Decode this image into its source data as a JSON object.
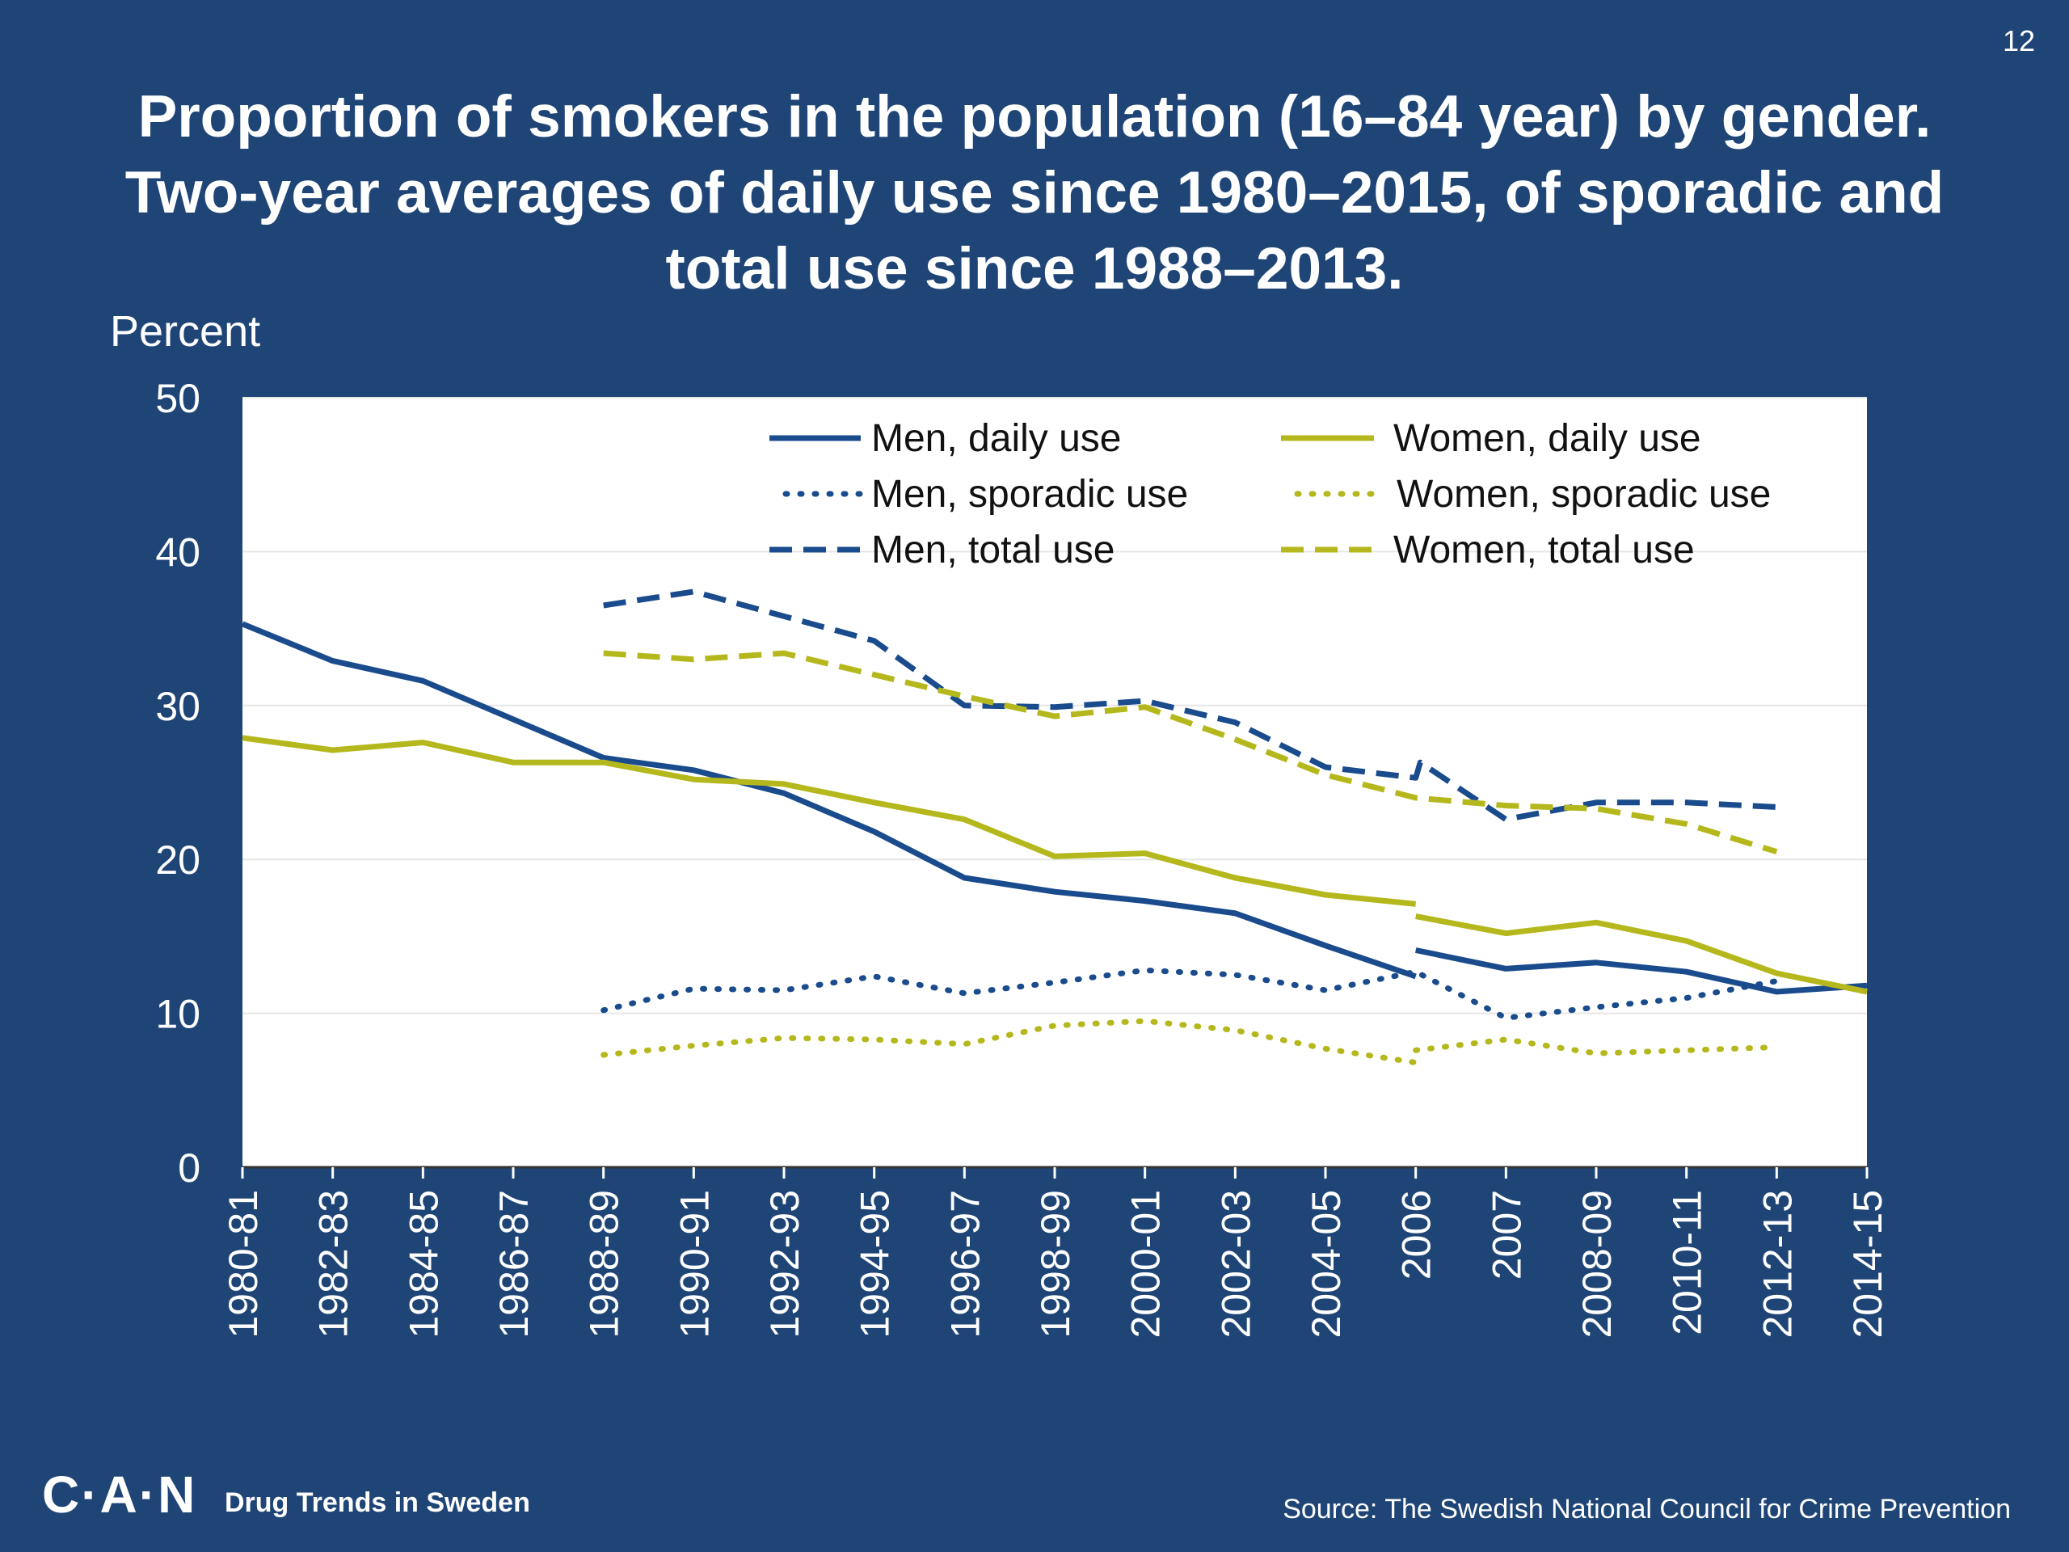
{
  "page_number": "12",
  "title_lines": [
    "Proportion of smokers in the population (16–84 year) by gender.",
    "Two-year averages of daily use since 1980–2015, of sporadic and",
    "total use since 1988–2013."
  ],
  "footer": {
    "logo": "C·A·N",
    "tagline": "Drug Trends in Sweden",
    "source": "Source: The Swedish National Council for Crime Prevention"
  },
  "colors": {
    "background": "#1f4577",
    "men": "#1a4b8c",
    "women": "#b5b81c",
    "plot_background": "#ffffff",
    "gridline": "#e6e6e6",
    "text": "#ffffff"
  },
  "chart_data": {
    "type": "line",
    "ylabel": "Percent",
    "xlabel": "",
    "ylim": [
      0,
      50
    ],
    "yticks": [
      0,
      10,
      20,
      30,
      40,
      50
    ],
    "grid": true,
    "legend_position": "top-right",
    "categories": [
      "1980-81",
      "1982-83",
      "1984-85",
      "1986-87",
      "1988-89",
      "1990-91",
      "1992-93",
      "1994-95",
      "1996-97",
      "1998-99",
      "2000-01",
      "2002-03",
      "2004-05",
      "2006",
      "2007",
      "2008-09",
      "2010-11",
      "2012-13",
      "2014-15"
    ],
    "series": [
      {
        "name": "Men, daily use",
        "color": "#1a4b8c",
        "style": "solid",
        "segments": [
          [
            [
              0,
              35.3
            ],
            [
              1,
              32.9
            ],
            [
              2,
              31.6
            ],
            [
              3,
              29.1
            ],
            [
              4,
              26.6
            ],
            [
              5,
              25.8
            ],
            [
              6,
              24.3
            ],
            [
              7,
              21.8
            ],
            [
              8,
              18.8
            ],
            [
              9,
              17.9
            ],
            [
              10,
              17.3
            ],
            [
              11,
              16.5
            ],
            [
              12,
              14.4
            ],
            [
              13,
              12.4
            ]
          ],
          [
            [
              13,
              14.1
            ],
            [
              14,
              12.9
            ],
            [
              15,
              13.3
            ],
            [
              16,
              12.7
            ],
            [
              17,
              11.4
            ],
            [
              18,
              11.8
            ]
          ]
        ]
      },
      {
        "name": "Men, sporadic use",
        "color": "#1a4b8c",
        "style": "dotted",
        "segments": [
          [
            [
              4,
              10.2
            ],
            [
              5,
              11.6
            ],
            [
              6,
              11.5
            ],
            [
              7,
              12.4
            ],
            [
              8,
              11.3
            ],
            [
              9,
              12.0
            ],
            [
              10,
              12.8
            ],
            [
              11,
              12.5
            ],
            [
              12,
              11.5
            ],
            [
              13,
              12.7
            ],
            [
              14,
              9.7
            ],
            [
              15,
              10.4
            ],
            [
              16,
              11.0
            ],
            [
              17,
              12.1
            ]
          ]
        ]
      },
      {
        "name": "Men, total use",
        "color": "#1a4b8c",
        "style": "dashed",
        "segments": [
          [
            [
              4,
              36.5
            ],
            [
              5,
              37.4
            ],
            [
              6,
              35.8
            ],
            [
              7,
              34.2
            ],
            [
              8,
              30.0
            ],
            [
              9,
              29.9
            ],
            [
              10,
              30.3
            ],
            [
              11,
              28.9
            ],
            [
              12,
              26.0
            ],
            [
              13,
              25.3
            ],
            [
              13.05,
              26.3
            ],
            [
              14,
              22.6
            ],
            [
              15,
              23.7
            ],
            [
              16,
              23.7
            ],
            [
              17,
              23.4
            ]
          ]
        ]
      },
      {
        "name": "Women, daily use",
        "color": "#b5b81c",
        "style": "solid",
        "segments": [
          [
            [
              0,
              27.9
            ],
            [
              1,
              27.1
            ],
            [
              2,
              27.6
            ],
            [
              3,
              26.3
            ],
            [
              4,
              26.3
            ],
            [
              5,
              25.2
            ],
            [
              6,
              24.9
            ],
            [
              7,
              23.7
            ],
            [
              8,
              22.6
            ],
            [
              9,
              20.2
            ],
            [
              10,
              20.4
            ],
            [
              11,
              18.8
            ],
            [
              12,
              17.7
            ],
            [
              13,
              17.1
            ]
          ],
          [
            [
              13,
              16.3
            ],
            [
              14,
              15.2
            ],
            [
              15,
              15.9
            ],
            [
              16,
              14.7
            ],
            [
              17,
              12.6
            ],
            [
              18,
              11.4
            ]
          ]
        ]
      },
      {
        "name": "Women, sporadic use",
        "color": "#b5b81c",
        "style": "dotted",
        "segments": [
          [
            [
              4,
              7.3
            ],
            [
              5,
              7.9
            ],
            [
              6,
              8.4
            ],
            [
              7,
              8.3
            ],
            [
              8,
              8.0
            ],
            [
              9,
              9.2
            ],
            [
              10,
              9.5
            ],
            [
              11,
              8.9
            ],
            [
              12,
              7.7
            ],
            [
              13,
              6.8
            ]
          ],
          [
            [
              13,
              7.6
            ],
            [
              14,
              8.3
            ],
            [
              15,
              7.4
            ],
            [
              16,
              7.6
            ],
            [
              17,
              7.8
            ]
          ]
        ]
      },
      {
        "name": "Women, total use",
        "color": "#b5b81c",
        "style": "dashed",
        "segments": [
          [
            [
              4,
              33.4
            ],
            [
              5,
              33.0
            ],
            [
              6,
              33.4
            ],
            [
              7,
              32.0
            ],
            [
              8,
              30.6
            ],
            [
              9,
              29.3
            ],
            [
              10,
              29.9
            ],
            [
              11,
              27.8
            ],
            [
              12,
              25.5
            ],
            [
              13,
              24.0
            ],
            [
              14,
              23.5
            ],
            [
              15,
              23.3
            ],
            [
              16,
              22.3
            ],
            [
              17,
              20.5
            ]
          ]
        ]
      }
    ]
  }
}
